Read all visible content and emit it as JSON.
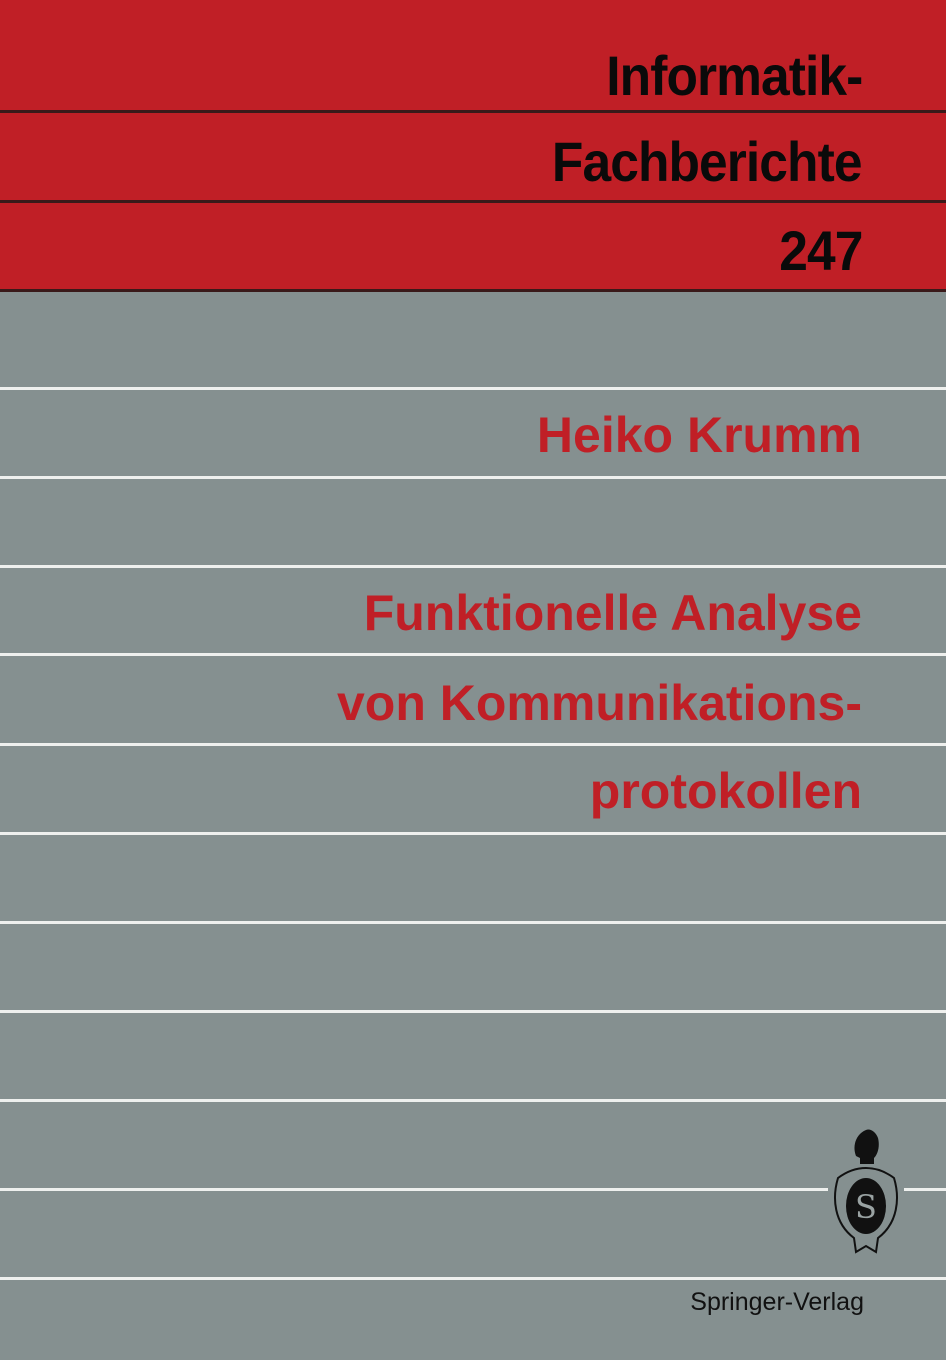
{
  "cover": {
    "series_line1": "Informatik-",
    "series_line2": "Fachberichte",
    "volume": "247",
    "author": "Heiko Krumm",
    "title_lines": [
      "Funktionelle Analyse",
      "von Kommunikations-",
      "protokollen"
    ],
    "publisher": "Springer-Verlag",
    "logo": "springer-knight-logo",
    "colors": {
      "band": "#c01f26",
      "background": "#859090",
      "title_text": "#c01f26",
      "series_text": "#0a0a0a"
    }
  }
}
